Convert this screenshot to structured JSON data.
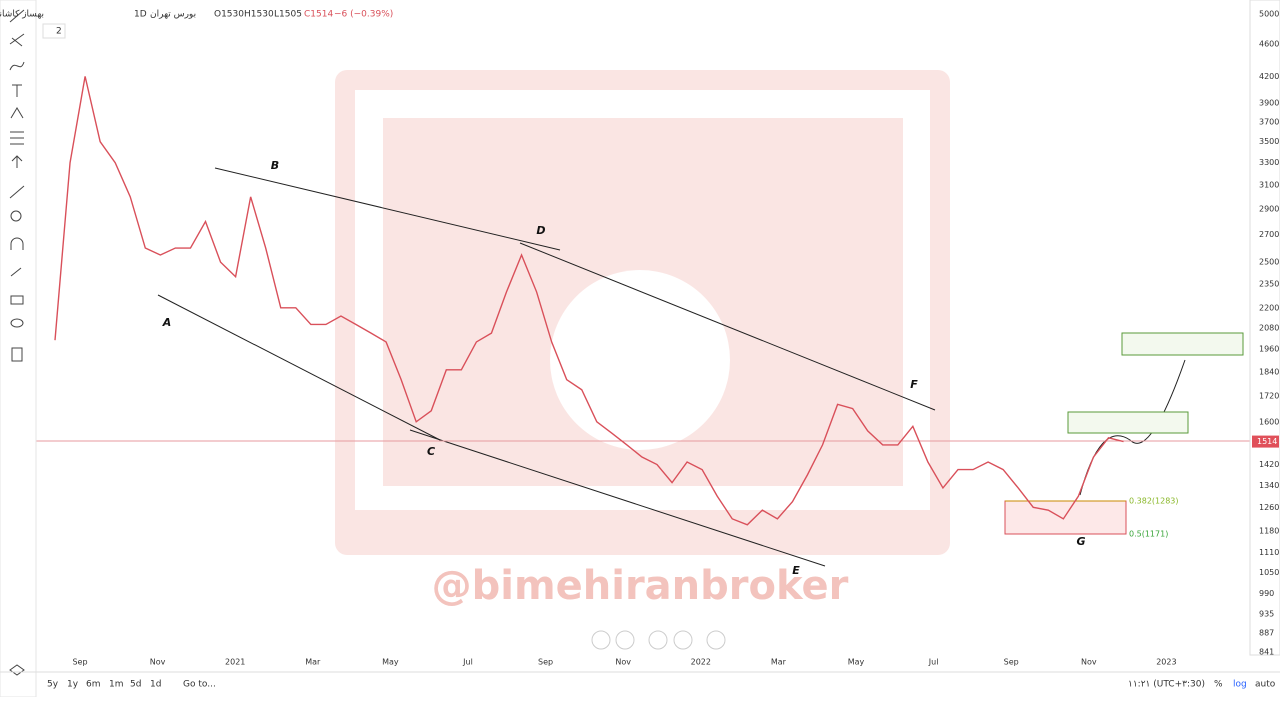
{
  "header": {
    "symbol": "بهساز کاشانه تهران",
    "interval": "1D",
    "exchange": "بورس تهران",
    "open": "O1530",
    "high": "H1530",
    "low": "L1505",
    "close": "C1514",
    "change": "−6 (−0.39%)",
    "indicators": "2"
  },
  "chart_data": {
    "type": "line",
    "log_scale": true,
    "color": "#d9505a",
    "yticks": [
      5000,
      4600,
      4200,
      3900,
      3700,
      3500,
      3300,
      3100,
      2900,
      2700,
      2500,
      2350,
      2200,
      2080,
      1960,
      1840,
      1720,
      1600,
      1420,
      1340,
      1260,
      1180,
      1110,
      1050,
      990,
      935,
      887,
      841
    ],
    "x_labels": [
      "Sep",
      "Nov",
      "2021",
      "Mar",
      "May",
      "Jul",
      "Sep",
      "Nov",
      "2022",
      "Mar",
      "May",
      "Jul",
      "Sep",
      "Nov",
      "2023"
    ],
    "last_price": 1514,
    "values": [
      2010,
      3300,
      4200,
      3500,
      3300,
      3000,
      2600,
      2550,
      2600,
      2600,
      2800,
      2500,
      2400,
      3000,
      2600,
      2200,
      2200,
      2100,
      2100,
      2150,
      2100,
      2050,
      2000,
      1800,
      1600,
      1650,
      1850,
      1850,
      2000,
      2050,
      2300,
      2550,
      2300,
      2000,
      1800,
      1750,
      1600,
      1550,
      1500,
      1450,
      1420,
      1350,
      1430,
      1400,
      1300,
      1220,
      1200,
      1250,
      1220,
      1280,
      1380,
      1500,
      1680,
      1660,
      1560,
      1500,
      1500,
      1580,
      1430,
      1330,
      1400,
      1400,
      1430,
      1400,
      1330,
      1260,
      1250,
      1220,
      1300,
      1450,
      1530,
      1514
    ],
    "annotations": [
      "A",
      "B",
      "C",
      "D",
      "E",
      "F",
      "G"
    ],
    "fib_labels": [
      "0.382(1283)",
      "0.5(1171)"
    ],
    "watermark": "@bimehiranbroker"
  },
  "footer": {
    "ranges": [
      "5y",
      "1y",
      "6m",
      "1m",
      "5d",
      "1d"
    ],
    "goto": "Go to...",
    "time": "۱۱:۲۱ (UTC+۳:30)",
    "percent": "%",
    "log": "log",
    "auto": "auto"
  }
}
